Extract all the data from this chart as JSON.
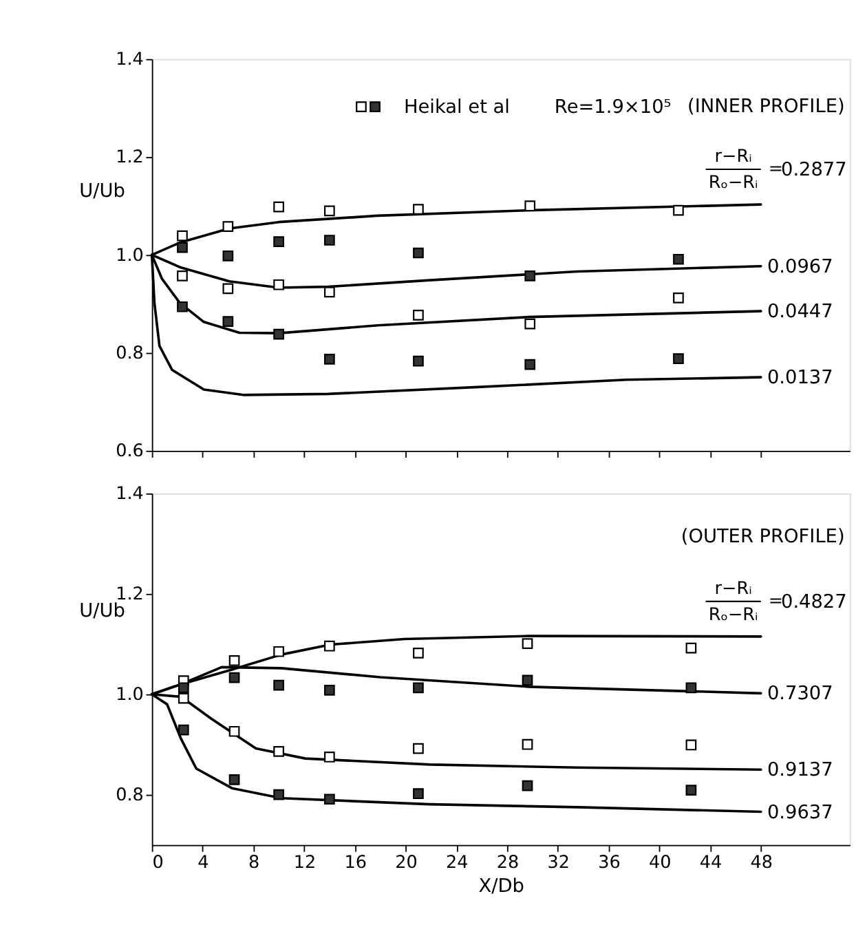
{
  "chart_data": [
    {
      "type": "line",
      "subtitle": "Re=1.9×10⁵",
      "ylabel": "U/Ub",
      "xlim": [
        0,
        55
      ],
      "ylim": [
        0.6,
        1.4
      ],
      "xticks": [
        0,
        4,
        8,
        12,
        16,
        20,
        24,
        28,
        32,
        36,
        40,
        44,
        48
      ],
      "yticks": [
        0.6,
        0.8,
        {
          "value": 1.0,
          "label": "1.0"
        },
        1.2,
        1.4
      ],
      "tick_labels": "y",
      "legend": "top",
      "annotations": [
        "(INNER PROFILE)",
        "r−Rᵢ",
        "Rₒ−Rᵢ",
        "="
      ],
      "series": [
        {
          "name": "0.2877",
          "color": "#000000",
          "x": [
            0,
            2.2,
            6.1,
            10,
            17.8,
            29.6,
            48
          ],
          "values": [
            1.0,
            1.025,
            1.054,
            1.067,
            1.08,
            1.091,
            1.103
          ]
        },
        {
          "name": "0.0967",
          "color": "#000000",
          "x": [
            0,
            2.2,
            6.1,
            10,
            13.9,
            21.7,
            33.5,
            48
          ],
          "values": [
            1.0,
            0.975,
            0.946,
            0.933,
            0.935,
            0.948,
            0.966,
            0.977
          ]
        },
        {
          "name": "0.0447",
          "color": "#000000",
          "x": [
            0,
            0.8,
            2.2,
            4.1,
            6.9,
            10,
            17.8,
            29.6,
            48
          ],
          "values": [
            1.0,
            0.951,
            0.902,
            0.863,
            0.841,
            0.84,
            0.856,
            0.873,
            0.885
          ]
        },
        {
          "name": "0.0137",
          "color": "#000000",
          "x": [
            0,
            0.2,
            0.6,
            1.6,
            4.1,
            7.2,
            13.9,
            25.7,
            37.4,
            48
          ],
          "values": [
            1.0,
            0.902,
            0.814,
            0.765,
            0.725,
            0.714,
            0.716,
            0.73,
            0.745,
            0.75
          ]
        },
        {
          "type": "scatter",
          "marker": "square",
          "color": "#ffffff",
          "x": [
            2.4,
            6,
            10,
            14,
            21,
            29.8,
            41.5
          ],
          "values": [
            1.039,
            1.058,
            1.098,
            1.09,
            1.093,
            1.1,
            1.091
          ]
        },
        {
          "type": "scatter",
          "marker": "square",
          "color": "#ffffff",
          "x": [
            2.4,
            6,
            10,
            14,
            21,
            29.8,
            41.5
          ],
          "values": [
            0.957,
            0.931,
            0.939,
            0.924,
            0.877,
            0.859,
            0.912
          ]
        },
        {
          "name": "Heikal et al",
          "type": "scatter",
          "marker": "square",
          "color": "#333333",
          "x": [
            2.4,
            6,
            10,
            14,
            21,
            29.8,
            41.5
          ],
          "values": [
            1.015,
            0.998,
            1.027,
            1.03,
            1.004,
            0.957,
            0.991
          ]
        },
        {
          "type": "scatter",
          "marker": "square",
          "color": "#333333",
          "x": [
            2.4,
            6,
            10,
            14,
            21,
            29.8,
            41.5
          ],
          "values": [
            0.894,
            0.864,
            0.838,
            0.787,
            0.783,
            0.776,
            0.788
          ]
        }
      ]
    },
    {
      "type": "line",
      "xlabel": "X/Db",
      "ylabel": "U/Ub",
      "xlim": [
        0,
        55
      ],
      "ylim": [
        0.7,
        1.4
      ],
      "xticks": [
        0,
        4,
        8,
        12,
        16,
        20,
        24,
        28,
        32,
        36,
        40,
        44,
        48
      ],
      "yticks": [
        0.8,
        {
          "value": 1.0,
          "label": "1.0"
        },
        1.2,
        1.4
      ],
      "annotations": [
        "(OUTER PROFILE)",
        "r−Rᵢ",
        "Rₒ−Rᵢ",
        "="
      ],
      "series": [
        {
          "name": "0.4827",
          "color": "#000000",
          "x": [
            0,
            2.3,
            6.3,
            10.2,
            14.1,
            19.9,
            29.7,
            48
          ],
          "values": [
            1.0,
            1.02,
            1.049,
            1.079,
            1.099,
            1.11,
            1.116,
            1.115
          ]
        },
        {
          "name": "0.7307",
          "color": "#000000",
          "x": [
            0,
            2.3,
            5.5,
            10.2,
            18,
            29.7,
            48
          ],
          "values": [
            1.0,
            1.02,
            1.054,
            1.052,
            1.034,
            1.015,
            1.002
          ]
        },
        {
          "name": "0.9137",
          "color": "#000000",
          "x": [
            0,
            2.3,
            4.7,
            8.2,
            12.1,
            21.9,
            33.6,
            48
          ],
          "values": [
            1.0,
            0.995,
            0.951,
            0.892,
            0.872,
            0.86,
            0.854,
            0.85
          ]
        },
        {
          "name": "0.9637",
          "color": "#000000",
          "x": [
            0,
            1.2,
            2.3,
            3.5,
            6.3,
            10.2,
            21.9,
            33.6,
            48
          ],
          "values": [
            1.0,
            0.98,
            0.911,
            0.852,
            0.813,
            0.793,
            0.781,
            0.775,
            0.766
          ]
        },
        {
          "type": "scatter",
          "marker": "square",
          "color": "#ffffff",
          "x": [
            2.5,
            6.5,
            10,
            14,
            21,
            29.6,
            42.5
          ],
          "values": [
            1.027,
            1.067,
            1.085,
            1.096,
            1.082,
            1.101,
            1.092
          ]
        },
        {
          "type": "scatter",
          "marker": "square",
          "color": "#ffffff",
          "x": [
            2.5,
            6.5,
            10,
            14,
            21,
            29.6,
            42.5
          ],
          "values": [
            0.992,
            0.926,
            0.886,
            0.875,
            0.892,
            0.9,
            0.899
          ]
        },
        {
          "type": "scatter",
          "marker": "square",
          "color": "#333333",
          "x": [
            2.5,
            6.5,
            10,
            14,
            21,
            29.6,
            42.5
          ],
          "values": [
            1.013,
            1.033,
            1.018,
            1.008,
            1.013,
            1.028,
            1.013
          ]
        },
        {
          "type": "scatter",
          "marker": "square",
          "color": "#333333",
          "x": [
            2.5,
            6.5,
            10,
            14,
            21,
            29.6,
            42.5
          ],
          "values": [
            0.929,
            0.83,
            0.8,
            0.791,
            0.802,
            0.818,
            0.809
          ]
        }
      ]
    }
  ]
}
